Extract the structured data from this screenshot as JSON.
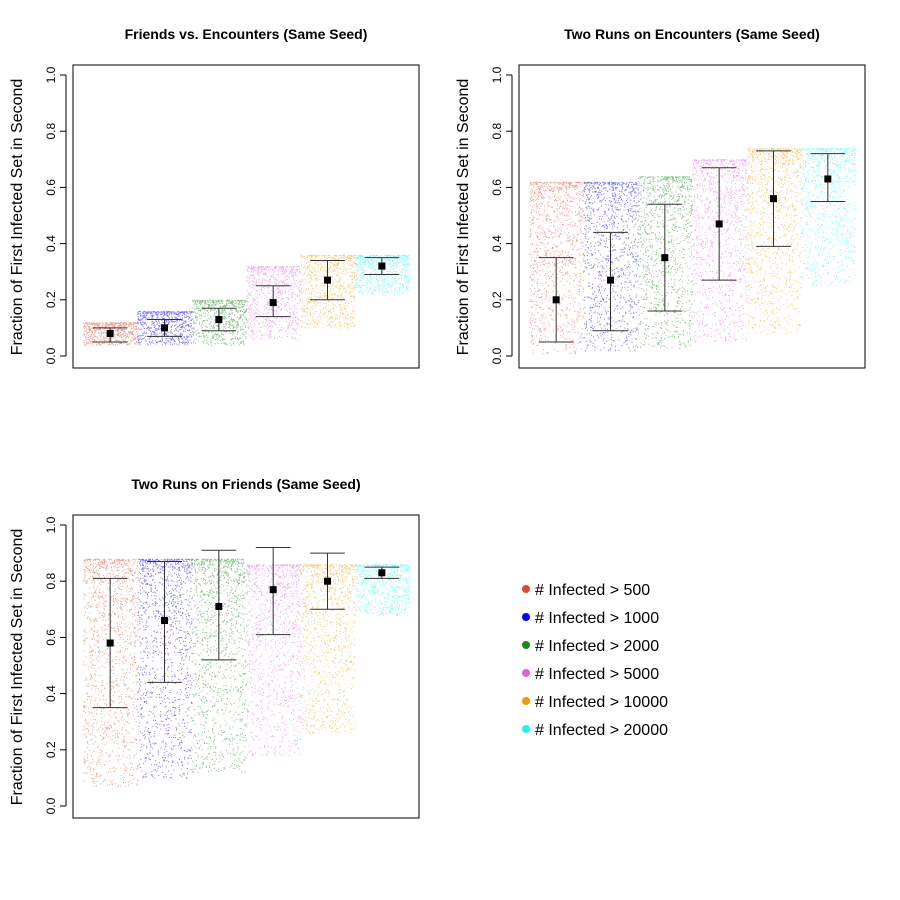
{
  "legend": [
    {
      "label": "# Infected > 500",
      "color": "#e8472f"
    },
    {
      "label": "# Infected > 1000",
      "color": "#0a00ff"
    },
    {
      "label": "# Infected > 2000",
      "color": "#1a8a1a"
    },
    {
      "label": "# Infected > 5000",
      "color": "#e060e0"
    },
    {
      "label": "# Infected > 10000",
      "color": "#f39a00"
    },
    {
      "label": "# Infected > 20000",
      "color": "#22f2f2"
    }
  ],
  "chart_data": [
    {
      "type": "scatter",
      "title": "Friends vs. Encounters (Same Seed)",
      "ylabel": "Fraction of First Infected Set in Second",
      "xlabel": "",
      "ylim": [
        0,
        1
      ],
      "yticks": [
        "0.0",
        "0.2",
        "0.4",
        "0.6",
        "0.8",
        "1.0"
      ],
      "series": [
        {
          "name": "# Infected > 500",
          "mean": 0.08,
          "err_low": 0.05,
          "err_high": 0.1,
          "min": 0.04,
          "max": 0.12
        },
        {
          "name": "# Infected > 1000",
          "mean": 0.1,
          "err_low": 0.07,
          "err_high": 0.13,
          "min": 0.04,
          "max": 0.16
        },
        {
          "name": "# Infected > 2000",
          "mean": 0.13,
          "err_low": 0.09,
          "err_high": 0.17,
          "min": 0.04,
          "max": 0.2
        },
        {
          "name": "# Infected > 5000",
          "mean": 0.19,
          "err_low": 0.14,
          "err_high": 0.25,
          "min": 0.06,
          "max": 0.32
        },
        {
          "name": "# Infected > 10000",
          "mean": 0.27,
          "err_low": 0.2,
          "err_high": 0.34,
          "min": 0.1,
          "max": 0.36
        },
        {
          "name": "# Infected > 20000",
          "mean": 0.32,
          "err_low": 0.29,
          "err_high": 0.35,
          "min": 0.22,
          "max": 0.36
        }
      ]
    },
    {
      "type": "scatter",
      "title": "Two Runs on Encounters (Same Seed)",
      "ylabel": "Fraction of First Infected Set in Second",
      "xlabel": "",
      "ylim": [
        0,
        1
      ],
      "yticks": [
        "0.0",
        "0.2",
        "0.4",
        "0.6",
        "0.8",
        "1.0"
      ],
      "series": [
        {
          "name": "# Infected > 500",
          "mean": 0.2,
          "err_low": 0.05,
          "err_high": 0.35,
          "min": 0.01,
          "max": 0.62
        },
        {
          "name": "# Infected > 1000",
          "mean": 0.27,
          "err_low": 0.09,
          "err_high": 0.44,
          "min": 0.02,
          "max": 0.62
        },
        {
          "name": "# Infected > 2000",
          "mean": 0.35,
          "err_low": 0.16,
          "err_high": 0.54,
          "min": 0.03,
          "max": 0.64
        },
        {
          "name": "# Infected > 5000",
          "mean": 0.47,
          "err_low": 0.27,
          "err_high": 0.67,
          "min": 0.05,
          "max": 0.7
        },
        {
          "name": "# Infected > 10000",
          "mean": 0.56,
          "err_low": 0.39,
          "err_high": 0.73,
          "min": 0.08,
          "max": 0.74
        },
        {
          "name": "# Infected > 20000",
          "mean": 0.63,
          "err_low": 0.55,
          "err_high": 0.72,
          "min": 0.25,
          "max": 0.74
        }
      ]
    },
    {
      "type": "scatter",
      "title": "Two Runs on Friends (Same Seed)",
      "ylabel": "Fraction of First Infected Set in Second",
      "xlabel": "",
      "ylim": [
        0,
        1
      ],
      "yticks": [
        "0.0",
        "0.2",
        "0.4",
        "0.6",
        "0.8",
        "1.0"
      ],
      "series": [
        {
          "name": "# Infected > 500",
          "mean": 0.58,
          "err_low": 0.35,
          "err_high": 0.81,
          "min": 0.07,
          "max": 0.88
        },
        {
          "name": "# Infected > 1000",
          "mean": 0.66,
          "err_low": 0.44,
          "err_high": 0.87,
          "min": 0.1,
          "max": 0.88
        },
        {
          "name": "# Infected > 2000",
          "mean": 0.71,
          "err_low": 0.52,
          "err_high": 0.91,
          "min": 0.12,
          "max": 0.88
        },
        {
          "name": "# Infected > 5000",
          "mean": 0.77,
          "err_low": 0.61,
          "err_high": 0.92,
          "min": 0.18,
          "max": 0.86
        },
        {
          "name": "# Infected > 10000",
          "mean": 0.8,
          "err_low": 0.7,
          "err_high": 0.9,
          "min": 0.26,
          "max": 0.86
        },
        {
          "name": "# Infected > 20000",
          "mean": 0.83,
          "err_low": 0.81,
          "err_high": 0.85,
          "min": 0.68,
          "max": 0.86
        }
      ]
    }
  ]
}
